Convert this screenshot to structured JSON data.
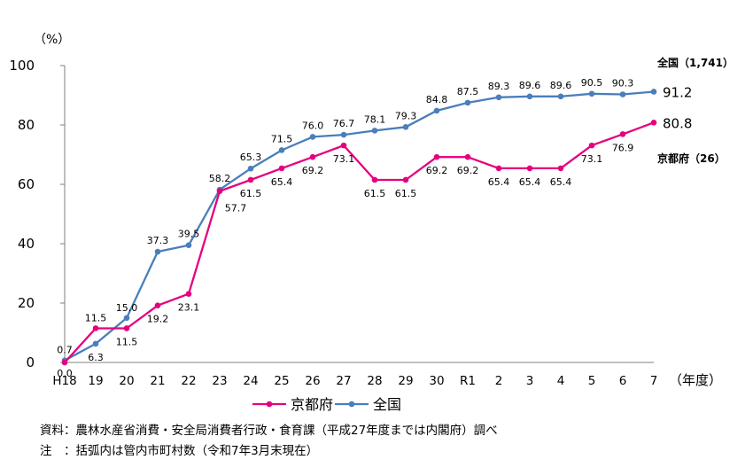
{
  "chart_data": {
    "type": "line",
    "categories": [
      "H18",
      "19",
      "20",
      "21",
      "22",
      "23",
      "24",
      "25",
      "26",
      "27",
      "28",
      "29",
      "30",
      "R1",
      "2",
      "3",
      "4",
      "5",
      "6",
      "7"
    ],
    "series": [
      {
        "name": "京都府",
        "color": "#e6007e",
        "values": [
          0.0,
          11.5,
          11.5,
          19.2,
          23.1,
          57.7,
          61.5,
          65.4,
          69.2,
          73.1,
          61.5,
          61.5,
          69.2,
          69.2,
          65.4,
          65.4,
          65.4,
          73.1,
          76.9,
          80.8
        ]
      },
      {
        "name": "全国",
        "color": "#4a7ebb",
        "values": [
          0.7,
          6.3,
          15.0,
          37.3,
          39.5,
          58.2,
          65.3,
          71.5,
          76.0,
          76.7,
          78.1,
          79.3,
          84.8,
          87.5,
          89.3,
          89.6,
          89.6,
          90.5,
          90.3,
          91.2
        ]
      }
    ],
    "value_labels": {
      "京都府": [
        "0.0",
        "11.5",
        "11.5",
        "19.2",
        "23.1",
        "57.7",
        "61.5",
        "65.4",
        "69.2",
        "73.1",
        "61.5",
        "61.5",
        "69.2",
        "69.2",
        "65.4",
        "65.4",
        "65.4",
        "73.1",
        "76.9",
        "80.8"
      ],
      "全国": [
        "0.7",
        "6.3",
        "15.0",
        "37.3",
        "39.5",
        "58.2",
        "65.3",
        "71.5",
        "76.0",
        "76.7",
        "78.1",
        "79.3",
        "84.8",
        "87.5",
        "89.3",
        "89.6",
        "89.6",
        "90.5",
        "90.3",
        "91.2"
      ]
    },
    "ylim": [
      0,
      100
    ],
    "yticks": [
      0,
      20,
      40,
      60,
      80,
      100
    ],
    "ylabel": "（%）",
    "xlabel": "（年度）",
    "end_labels": {
      "全国": "全国（1,741）",
      "京都府": "京都府（26）"
    },
    "legend_position": "bottom",
    "grid": false
  },
  "notes": {
    "source": "資料：農林水産省消費・安全局消費者行政・食育課（平成27年度までは内閣府）調べ",
    "note": "注　：括弧内は管内市町村数（令和7年3月末現在）"
  }
}
